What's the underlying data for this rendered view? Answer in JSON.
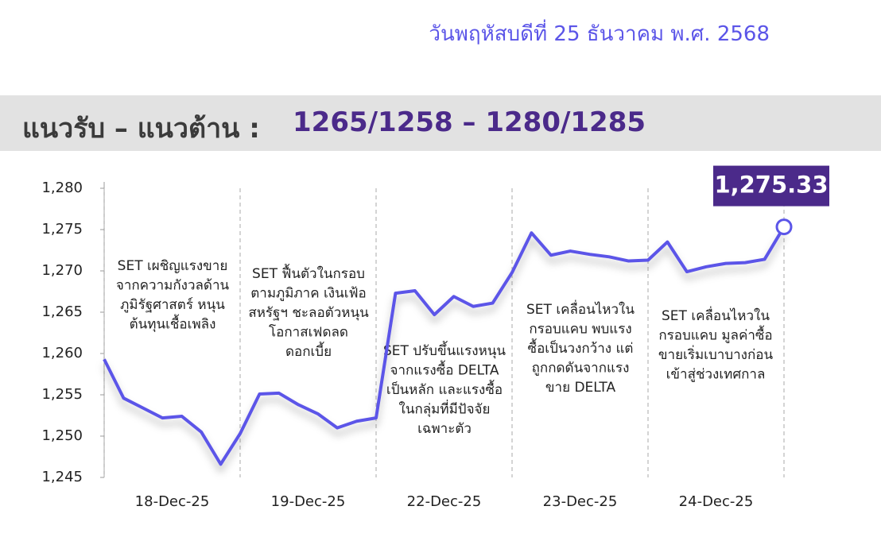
{
  "header": {
    "date": "วันพฤหัสบดีที่ 25 ธันวาคม พ.ศ. 2568",
    "title": "แนวรับ – แนวต้าน :",
    "levels": "1265/1258 – 1280/1285"
  },
  "chart_data": {
    "type": "line",
    "categories": [
      null,
      null,
      null,
      null,
      null,
      null,
      null,
      null,
      null,
      null,
      null,
      null,
      null,
      null,
      null,
      null,
      null,
      null,
      null,
      null,
      null,
      null,
      null,
      null,
      null,
      null,
      null,
      null,
      null,
      null,
      null,
      null,
      null,
      null,
      null,
      null
    ],
    "day_labels": [
      "18-Dec-25",
      "19-Dec-25",
      "22-Dec-25",
      "23-Dec-25",
      "24-Dec-25"
    ],
    "series": [
      {
        "name": "SET",
        "color": "#5b55e8",
        "values": [
          1259.3,
          1254.6,
          1253.4,
          1252.2,
          1252.4,
          1250.5,
          1246.6,
          1250.3,
          1255.1,
          1255.2,
          1253.8,
          1252.7,
          1251.0,
          1251.8,
          1252.2,
          1267.3,
          1267.6,
          1264.7,
          1266.9,
          1265.7,
          1266.1,
          1269.8,
          1274.6,
          1271.9,
          1272.4,
          1272.0,
          1271.7,
          1271.2,
          1271.3,
          1273.5,
          1269.9,
          1270.5,
          1270.9,
          1271.0,
          1271.4,
          1275.33
        ],
        "value_labels": [
          null,
          null,
          null,
          null,
          null,
          null,
          null,
          null,
          null,
          null,
          null,
          null,
          null,
          null,
          null,
          null,
          null,
          null,
          null,
          null,
          null,
          null,
          null,
          null,
          null,
          null,
          null,
          null,
          null,
          null,
          null,
          null,
          null,
          null,
          null,
          "1,275.33"
        ]
      }
    ],
    "ylim": [
      1245,
      1280
    ],
    "yticks": [
      {
        "value": 1245,
        "label": "1,245"
      },
      {
        "value": 1250,
        "label": "1,250"
      },
      {
        "value": 1255,
        "label": "1,255"
      },
      {
        "value": 1260,
        "label": "1,260"
      },
      {
        "value": 1265,
        "label": "1,265"
      },
      {
        "value": 1270,
        "label": "1,270"
      },
      {
        "value": 1275,
        "label": "1,275"
      },
      {
        "value": 1280,
        "label": "1,280"
      }
    ],
    "annotations": [
      [
        "SET เผชิญแรงขาย",
        "จากความกังวลด้าน",
        "ภูมิรัฐศาสตร์ หนุน",
        "ต้นทุนเชื้อเพลิง"
      ],
      [
        "SET ฟื้นตัวในกรอบ",
        "ตามภูมิภาค เงินเฟ้อ",
        "สหรัฐฯ ชะลอตัวหนุน",
        "โอกาสเฟดลด",
        "ดอกเบี้ย"
      ],
      [
        "SET ปรับขึ้นแรงหนุน",
        "จากแรงซื้อ DELTA",
        "เป็นหลัก และแรงซื้อ",
        "ในกลุ่มที่มีปัจจัย",
        "เฉพาะตัว"
      ],
      [
        "SET เคลื่อนไหวใน",
        "กรอบแคบ พบแรง",
        "ซื้อเป็นวงกว้าง แต่",
        "ถูกกดดันจากแรง",
        "ขาย DELTA"
      ],
      [
        "SET เคลื่อนไหวใน",
        "กรอบแคบ มูลค่าซื้อ",
        "ขายเริ่มเบาบางก่อน",
        "เข้าสู่ช่วงเทศกาล"
      ]
    ]
  }
}
